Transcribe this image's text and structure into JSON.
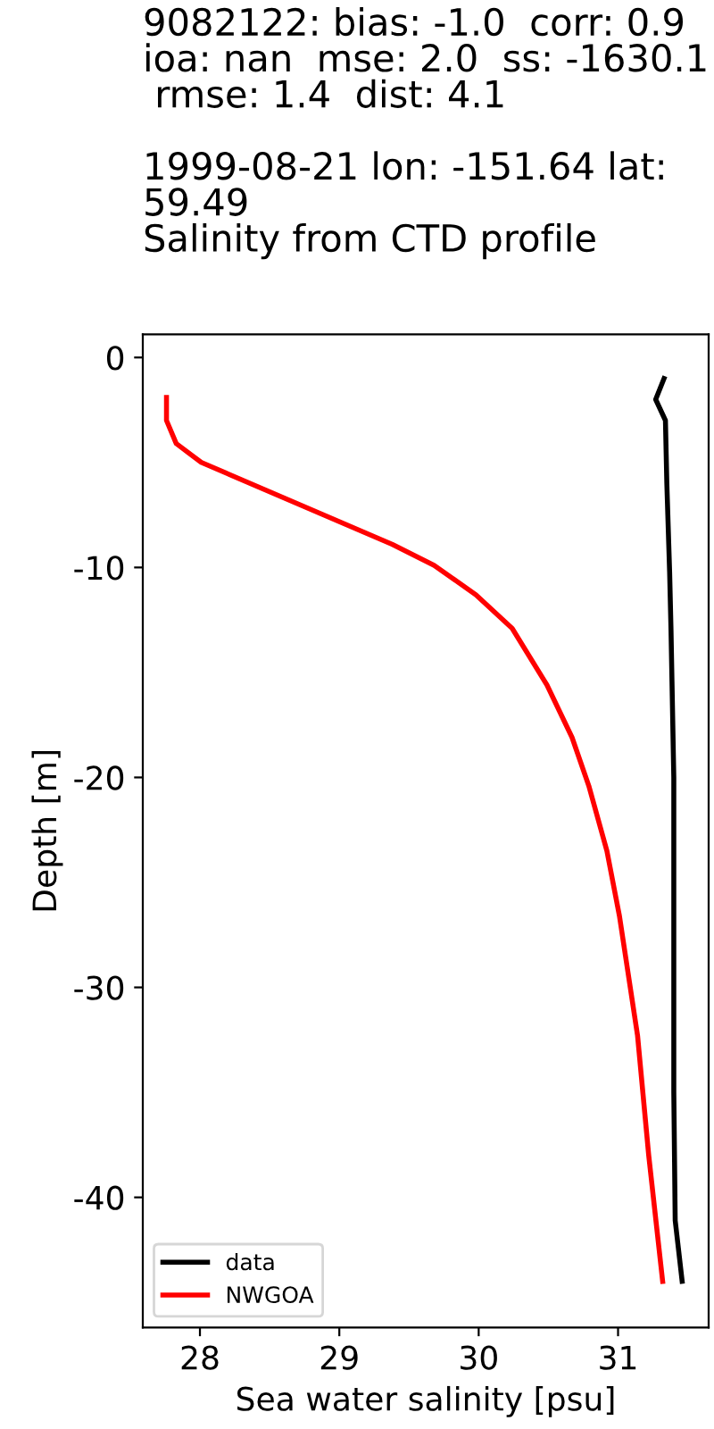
{
  "chart_data": {
    "type": "line",
    "title": "9082122: bias: -1.0  corr: 0.9  ioa: nan  mse: 2.0  ss: -1630.1  rmse: 1.4  dist: 4.1\n\n1999-08-21 lon: -151.64 lat: 59.49\nSalinity from CTD profile",
    "xlabel": "Sea water salinity [psu]",
    "ylabel": "Depth [m]",
    "series": [
      {
        "name": "data",
        "color": "#000000",
        "x": [
          31.33,
          31.27,
          31.34,
          31.35,
          31.37,
          31.38,
          31.4,
          31.4,
          31.41,
          31.46
        ],
        "values": [
          -1.0,
          -2.0,
          -3.0,
          -6.0,
          -10.2,
          -13.0,
          -20.0,
          -35.0,
          -41.1,
          -44.0
        ]
      },
      {
        "name": "NWGOA",
        "color": "#ff0000",
        "x": [
          27.76,
          27.76,
          27.83,
          28.01,
          29.38,
          29.68,
          29.98,
          30.24,
          30.49,
          30.67,
          30.79,
          30.92,
          31.01,
          31.14,
          31.22,
          31.32
        ],
        "values": [
          -1.9,
          -3.0,
          -4.1,
          -5.0,
          -8.9,
          -9.9,
          -11.3,
          -12.9,
          -15.6,
          -18.1,
          -20.4,
          -23.5,
          -26.6,
          -32.3,
          -38.0,
          -44.0
        ]
      }
    ],
    "xlim": [
      27.59,
      31.65
    ],
    "ylim": [
      -46.2,
      1.1
    ],
    "xticks": [
      28,
      29,
      30,
      31
    ],
    "yticks": [
      0,
      -10,
      -20,
      -30,
      -40
    ],
    "grid": false,
    "legend": "lower left",
    "marker": "none",
    "line_style": "solid"
  }
}
